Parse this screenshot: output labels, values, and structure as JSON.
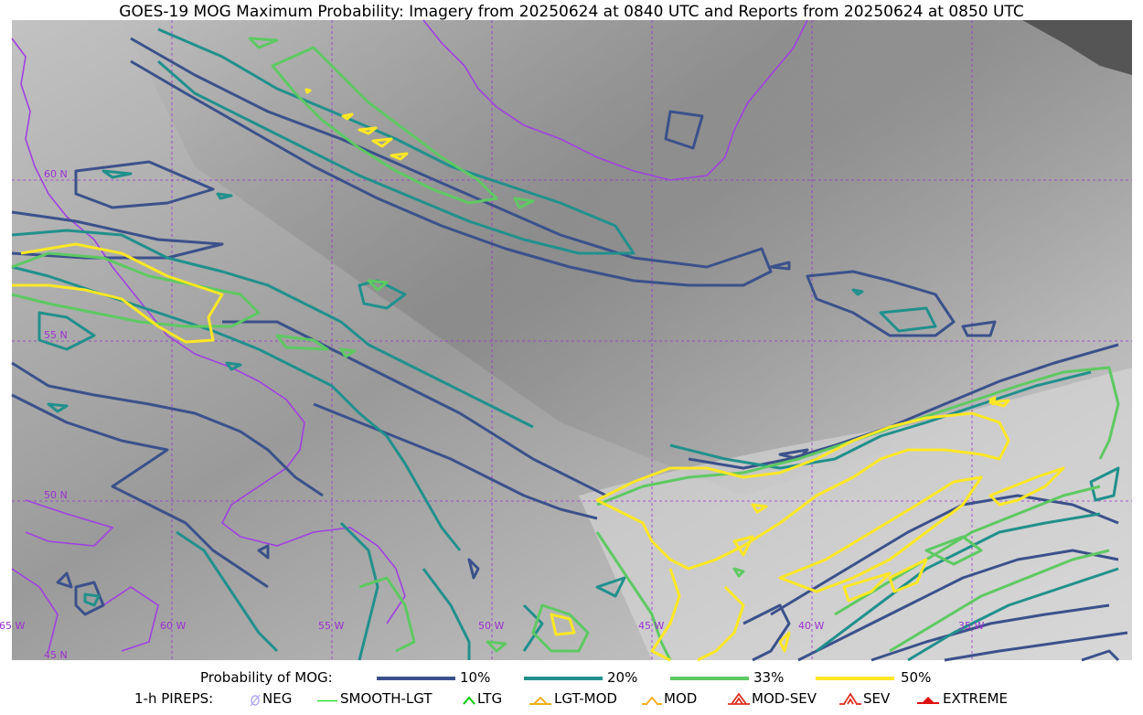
{
  "title": "GOES-19 MOG Maximum Probability: Imagery from 20250624 at 0840 UTC and Reports from 20250624 at 0850 UTC",
  "map": {
    "lat_labels": [
      "60 N",
      "55 N",
      "50 N",
      "45 N"
    ],
    "lon_labels": [
      "65 W",
      "60 W",
      "55 W",
      "50 W",
      "45 W",
      "40 W",
      "35 W"
    ],
    "graticule_color": "#9b30d0",
    "coast_color": "#a040e0"
  },
  "legend_probability": {
    "label": "Probability of MOG:",
    "items": [
      {
        "label": "10%",
        "color": "#3b518b"
      },
      {
        "label": "20%",
        "color": "#21908c"
      },
      {
        "label": "33%",
        "color": "#5ec962"
      },
      {
        "label": "50%",
        "color": "#fde725"
      }
    ]
  },
  "legend_pireps": {
    "label": "1-h PIREPS:",
    "items": [
      {
        "label": "NEG",
        "icon": "neg-icon",
        "color": "#b0a8f0"
      },
      {
        "label": "SMOOTH-LGT",
        "icon": "smooth-lgt-icon",
        "color": "#33dd33"
      },
      {
        "label": "LTG",
        "icon": "ltg-icon",
        "color": "#00cc00"
      },
      {
        "label": "LGT-MOD",
        "icon": "lgt-mod-icon",
        "color": "#f0b020"
      },
      {
        "label": "MOD",
        "icon": "mod-icon",
        "color": "#f0b020"
      },
      {
        "label": "MOD-SEV",
        "icon": "mod-sev-icon",
        "color": "#e03020"
      },
      {
        "label": "SEV",
        "icon": "sev-icon",
        "color": "#e03020"
      },
      {
        "label": "EXTREME",
        "icon": "extreme-icon",
        "color": "#e01010"
      }
    ]
  }
}
